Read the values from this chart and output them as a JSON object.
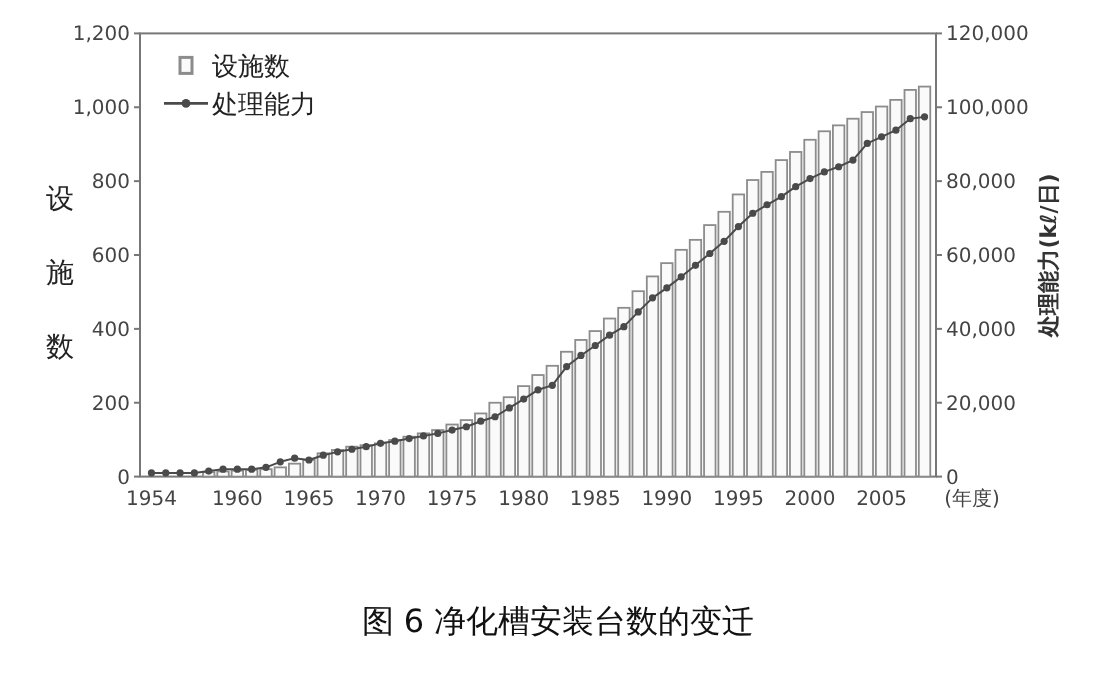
{
  "chart_data": {
    "type": "bar",
    "title": "图 6 净化槽安装台数的变迁",
    "xlabel": "(年度)",
    "ylabel": "设施数",
    "y2label": "处理能力(kℓ/日)",
    "x": [
      1954,
      1955,
      1956,
      1957,
      1958,
      1959,
      1960,
      1961,
      1962,
      1963,
      1964,
      1965,
      1966,
      1967,
      1968,
      1969,
      1970,
      1971,
      1972,
      1973,
      1974,
      1975,
      1976,
      1977,
      1978,
      1979,
      1980,
      1981,
      1982,
      1983,
      1984,
      1985,
      1986,
      1987,
      1988,
      1989,
      1990,
      1991,
      1992,
      1993,
      1994,
      1995,
      1996,
      1997,
      1998,
      1999,
      2000,
      2001,
      2002,
      2003,
      2004,
      2005,
      2006,
      2007,
      2008
    ],
    "series": [
      {
        "name": "设施数",
        "color": "#8c8c8c",
        "values": [
          null,
          null,
          null,
          null,
          12,
          14,
          16,
          18,
          20,
          25,
          35,
          45,
          63,
          72,
          81,
          85,
          90,
          99,
          108,
          117,
          126,
          141,
          153,
          171,
          200,
          215,
          245,
          275,
          300,
          338,
          370,
          394,
          428,
          457,
          502,
          542,
          578,
          614,
          641,
          681,
          717,
          764,
          803,
          825,
          857,
          879,
          912,
          935,
          951,
          969,
          987,
          1002,
          1020,
          1047,
          1056
        ]
      },
      {
        "name": "处理能力",
        "type": "line",
        "axis": "y2",
        "marker": "circle",
        "color": "#4a4a4a",
        "values": [
          1000,
          1000,
          1000,
          1000,
          1500,
          2000,
          2000,
          2000,
          2500,
          4000,
          5000,
          4500,
          5800,
          6700,
          7400,
          8100,
          9000,
          9600,
          10300,
          11000,
          11700,
          12600,
          13500,
          15000,
          16200,
          18600,
          21000,
          23500,
          24700,
          29800,
          32800,
          35500,
          38300,
          40600,
          44600,
          48400,
          51100,
          54100,
          57200,
          60400,
          63700,
          67700,
          71300,
          73600,
          75800,
          78500,
          80700,
          82500,
          83900,
          85700,
          90200,
          92000,
          93800,
          96900,
          97400
        ]
      }
    ],
    "xlim": [
      1953.2,
      2008.8
    ],
    "xticks": [
      1954,
      1960,
      1965,
      1970,
      1975,
      1980,
      1985,
      1990,
      1995,
      2000,
      2005
    ],
    "ylim": [
      0,
      1200
    ],
    "yticks": [
      0,
      200,
      400,
      600,
      800,
      {
        "value": 1000,
        "label": "1,000"
      },
      {
        "value": 1200,
        "label": "1,200"
      }
    ],
    "y2lim": [
      0,
      120000
    ],
    "y2ticks": [
      0,
      {
        "value": 20000,
        "label": "20,000"
      },
      {
        "value": 40000,
        "label": "40,000"
      },
      {
        "value": 60000,
        "label": "60,000"
      },
      {
        "value": 80000,
        "label": "80,000"
      },
      {
        "value": 100000,
        "label": "100,000"
      },
      {
        "value": 120000,
        "label": "120,000"
      }
    ],
    "legend": "top left"
  }
}
